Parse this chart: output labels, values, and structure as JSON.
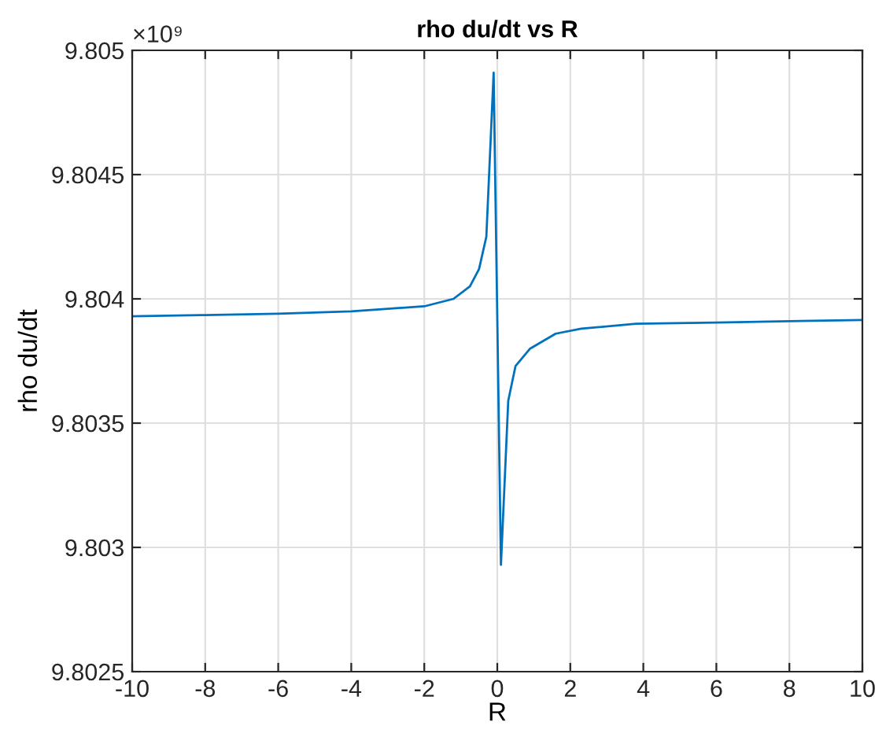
{
  "chart_data": {
    "type": "line",
    "title": "rho du/dt vs R",
    "xlabel": "R",
    "ylabel": "rho du/dt",
    "annotations": [
      "×10⁹"
    ],
    "x": [
      -10,
      -8,
      -6,
      -4,
      -3,
      -2,
      -1.2,
      -0.75,
      -0.5,
      -0.3,
      -0.1,
      0.1,
      0.3,
      0.5,
      0.9,
      1.6,
      2.3,
      3.8,
      6,
      8,
      10
    ],
    "series": [
      {
        "color": "#0072bd",
        "values": [
          9.80393,
          9.803935,
          9.80394,
          9.80395,
          9.80396,
          9.80397,
          9.804,
          9.80405,
          9.80412,
          9.80425,
          9.80491,
          9.80293,
          9.80359,
          9.80373,
          9.8038,
          9.80386,
          9.80388,
          9.8039,
          9.803905,
          9.80391,
          9.803915
        ]
      }
    ],
    "xlim": [
      -10,
      10
    ],
    "xticks": [
      -10,
      -8,
      -6,
      -4,
      -2,
      0,
      2,
      4,
      6,
      8,
      10
    ],
    "ylim": [
      9.8025,
      9.805
    ],
    "yticks": [
      9.8025,
      9.803,
      9.8035,
      9.804,
      9.8045,
      9.805
    ],
    "grid": true,
    "line_style": "solid",
    "marker": "none"
  }
}
